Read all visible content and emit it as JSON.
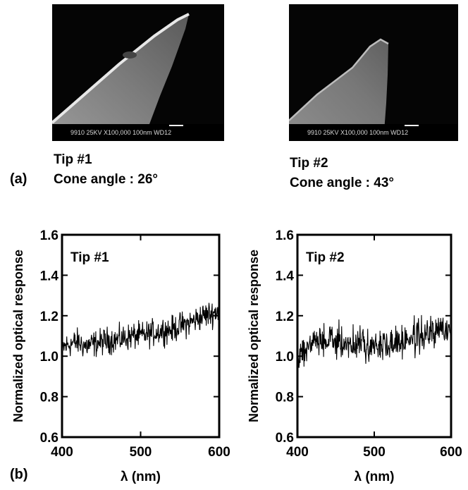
{
  "figure": {
    "panel_a_label": "(a)",
    "panel_b_label": "(b)",
    "sem_images": [
      {
        "tip_label": "Tip #1",
        "cone_angle_text": "Cone angle : 26°",
        "info_bar": "9910  25KV X100,000 100nm WD12"
      },
      {
        "tip_label": "Tip #2",
        "cone_angle_text": "Cone angle : 43°",
        "info_bar": "9910  25KV X100,000 100nm WD12"
      }
    ]
  },
  "chart_data": [
    {
      "type": "line",
      "annotation": "Tip #1",
      "ylabel": "Normalized optical response",
      "xlabel": "λ (nm)",
      "xlim": [
        400,
        600
      ],
      "ylim": [
        0.6,
        1.6
      ],
      "xticks": [
        "400",
        "500",
        "600"
      ],
      "yticks": [
        "0.6",
        "0.8",
        "1.0",
        "1.2",
        "1.4",
        "1.6"
      ],
      "x": [
        400,
        410,
        420,
        430,
        440,
        450,
        460,
        470,
        480,
        490,
        500,
        510,
        520,
        530,
        540,
        550,
        560,
        570,
        580,
        590,
        600
      ],
      "y": [
        1.04,
        1.06,
        1.07,
        1.05,
        1.06,
        1.07,
        1.08,
        1.08,
        1.09,
        1.1,
        1.1,
        1.11,
        1.12,
        1.13,
        1.13,
        1.15,
        1.16,
        1.18,
        1.2,
        1.21,
        1.23
      ],
      "noise_amplitude": 0.05
    },
    {
      "type": "line",
      "annotation": "Tip #2",
      "ylabel": "Normalized optical response",
      "xlabel": "λ (nm)",
      "xlim": [
        400,
        600
      ],
      "ylim": [
        0.6,
        1.6
      ],
      "xticks": [
        "400",
        "500",
        "600"
      ],
      "yticks": [
        "0.6",
        "0.8",
        "1.0",
        "1.2",
        "1.4",
        "1.6"
      ],
      "x": [
        400,
        410,
        420,
        430,
        440,
        450,
        460,
        470,
        480,
        490,
        500,
        510,
        520,
        530,
        540,
        550,
        560,
        570,
        580,
        590,
        600
      ],
      "y": [
        1.0,
        1.04,
        1.07,
        1.07,
        1.08,
        1.07,
        1.07,
        1.06,
        1.06,
        1.06,
        1.05,
        1.05,
        1.06,
        1.07,
        1.08,
        1.09,
        1.1,
        1.11,
        1.12,
        1.13,
        1.13
      ],
      "noise_amplitude": 0.06
    }
  ]
}
